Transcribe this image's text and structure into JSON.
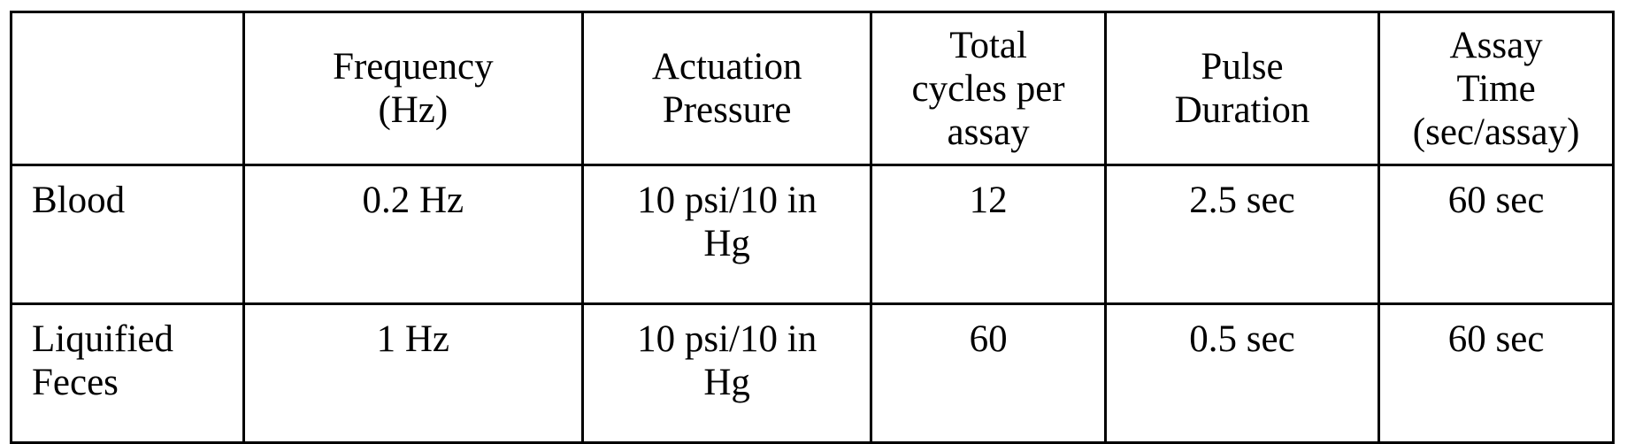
{
  "table": {
    "headers": [
      [
        ""
      ],
      [
        "Frequency",
        "(Hz)"
      ],
      [
        "Actuation",
        "Pressure"
      ],
      [
        "Total",
        "cycles per",
        "assay"
      ],
      [
        "Pulse",
        "Duration"
      ],
      [
        "Assay",
        "Time",
        "(sec/assay)"
      ]
    ],
    "rows": [
      {
        "label": [
          "Blood"
        ],
        "cells": [
          [
            "0.2 Hz"
          ],
          [
            "10 psi/10 in",
            "Hg"
          ],
          [
            "12"
          ],
          [
            "2.5 sec"
          ],
          [
            "60 sec"
          ]
        ]
      },
      {
        "label": [
          "Liquified",
          "Feces"
        ],
        "cells": [
          [
            "1 Hz"
          ],
          [
            "10 psi/10 in",
            "Hg"
          ],
          [
            "60"
          ],
          [
            "0.5 sec"
          ],
          [
            "60 sec"
          ]
        ]
      }
    ]
  }
}
